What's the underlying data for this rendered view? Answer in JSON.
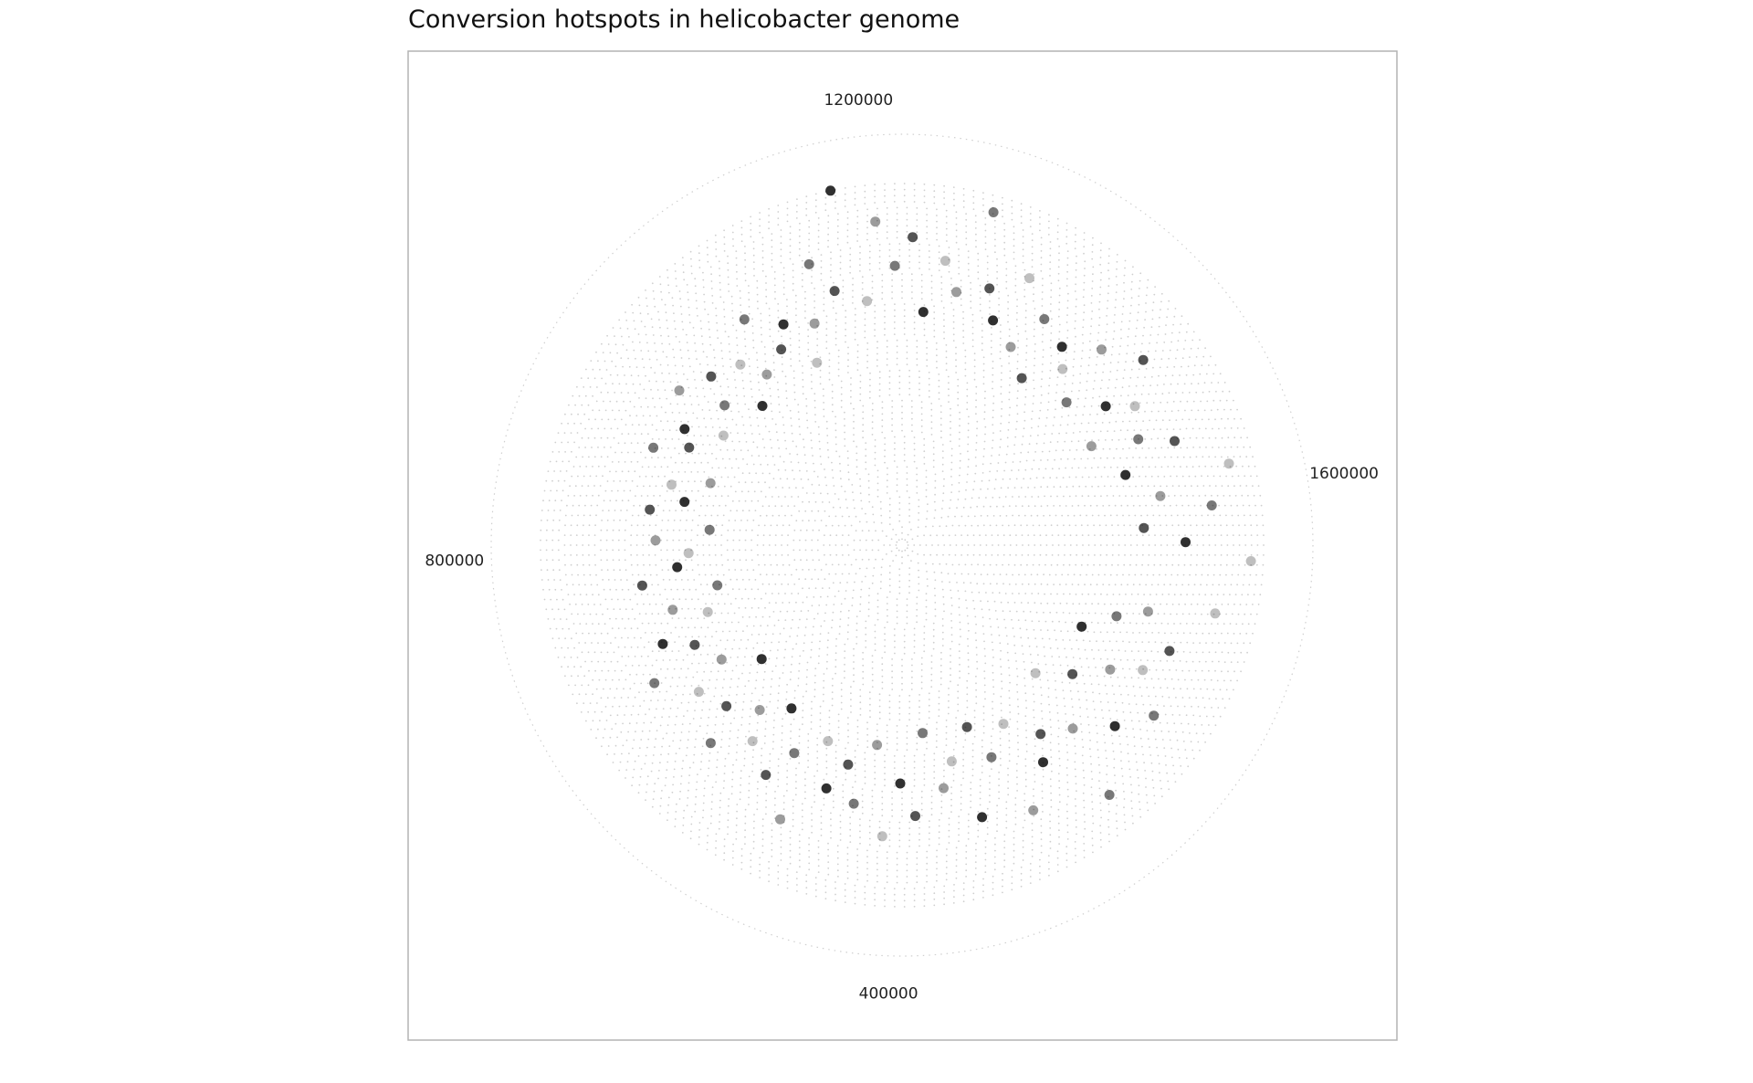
{
  "chart_data": {
    "type": "scatter",
    "coordinate_system": "polar",
    "title": "Conversion hotspots in helicobacter genome",
    "xlabel": "",
    "ylabel": "",
    "angle_axis": {
      "min": 0,
      "max": 1667867,
      "direction": "counterclockwise",
      "tick_labels": [
        "400000",
        "800000",
        "1200000",
        "1600000"
      ],
      "tick_values": [
        400000,
        800000,
        1200000,
        1600000
      ]
    },
    "radial_axis": {
      "min": 0,
      "max": 1
    },
    "grid": true,
    "legend": "none",
    "point_color": "#000000",
    "grid_color": "#cfcfcf",
    "panel_border_color": "#b3b3b3",
    "points_description": "hotspot positions placed along a spiral of increasing genome position; point darkness reflects overlap density",
    "points": [
      [
        32000,
        0.78
      ],
      [
        45000,
        0.62
      ],
      [
        60000,
        0.55
      ],
      [
        75000,
        0.7
      ],
      [
        88000,
        0.48
      ],
      [
        102000,
        0.66
      ],
      [
        118000,
        0.59
      ],
      [
        133000,
        0.74
      ],
      [
        147000,
        0.52
      ],
      [
        162000,
        0.68
      ],
      [
        178000,
        0.45
      ],
      [
        193000,
        0.61
      ],
      [
        208000,
        0.79
      ],
      [
        224000,
        0.57
      ],
      [
        239000,
        0.63
      ],
      [
        255000,
        0.5
      ],
      [
        270000,
        0.72
      ],
      [
        286000,
        0.56
      ],
      [
        301000,
        0.47
      ],
      [
        316000,
        0.69
      ],
      [
        332000,
        0.54
      ],
      [
        347000,
        0.6
      ],
      [
        363000,
        0.46
      ],
      [
        379000,
        0.66
      ],
      [
        394000,
        0.58
      ],
      [
        410000,
        0.71
      ],
      [
        425000,
        0.49
      ],
      [
        441000,
        0.64
      ],
      [
        456000,
        0.55
      ],
      [
        472000,
        0.62
      ],
      [
        488000,
        0.51
      ],
      [
        503000,
        0.73
      ],
      [
        519000,
        0.57
      ],
      [
        534000,
        0.65
      ],
      [
        550000,
        0.48
      ],
      [
        565000,
        0.6
      ],
      [
        581000,
        0.53
      ],
      [
        596000,
        0.67
      ],
      [
        612000,
        0.58
      ],
      [
        628000,
        0.44
      ],
      [
        643000,
        0.61
      ],
      [
        659000,
        0.52
      ],
      [
        674000,
        0.69
      ],
      [
        690000,
        0.56
      ],
      [
        705000,
        0.63
      ],
      [
        721000,
        0.5
      ],
      [
        736000,
        0.58
      ],
      [
        752000,
        0.46
      ],
      [
        768000,
        0.64
      ],
      [
        783000,
        0.55
      ],
      [
        799000,
        0.52
      ],
      [
        814000,
        0.6
      ],
      [
        830000,
        0.47
      ],
      [
        846000,
        0.62
      ],
      [
        861000,
        0.54
      ],
      [
        877000,
        0.58
      ],
      [
        892000,
        0.49
      ],
      [
        908000,
        0.65
      ],
      [
        923000,
        0.57
      ],
      [
        939000,
        0.6
      ],
      [
        955000,
        0.51
      ],
      [
        970000,
        0.66
      ],
      [
        986000,
        0.55
      ],
      [
        1001000,
        0.62
      ],
      [
        1017000,
        0.48
      ],
      [
        1032000,
        0.59
      ],
      [
        1048000,
        0.53
      ],
      [
        1064000,
        0.67
      ],
      [
        1079000,
        0.56
      ],
      [
        1095000,
        0.61
      ],
      [
        1110000,
        0.49
      ],
      [
        1126000,
        0.58
      ],
      [
        1141000,
        0.72
      ],
      [
        1157000,
        0.64
      ],
      [
        1173000,
        0.88
      ],
      [
        1188000,
        0.6
      ],
      [
        1204000,
        0.79
      ],
      [
        1219000,
        0.68
      ],
      [
        1235000,
        0.75
      ],
      [
        1250000,
        0.57
      ],
      [
        1266000,
        0.7
      ],
      [
        1282000,
        0.63
      ],
      [
        1297000,
        0.84
      ],
      [
        1313000,
        0.66
      ],
      [
        1328000,
        0.59
      ],
      [
        1344000,
        0.72
      ],
      [
        1359000,
        0.55
      ],
      [
        1375000,
        0.65
      ],
      [
        1391000,
        0.5
      ],
      [
        1406000,
        0.62
      ],
      [
        1422000,
        0.58
      ],
      [
        1437000,
        0.68
      ],
      [
        1453000,
        0.53
      ],
      [
        1469000,
        0.74
      ],
      [
        1484000,
        0.6
      ],
      [
        1500000,
        0.66
      ],
      [
        1515000,
        0.52
      ],
      [
        1531000,
        0.63
      ],
      [
        1546000,
        0.71
      ],
      [
        1562000,
        0.57
      ],
      [
        1578000,
        0.82
      ],
      [
        1593000,
        0.64
      ],
      [
        1609000,
        0.76
      ],
      [
        1624000,
        0.59
      ],
      [
        1640000,
        0.69
      ],
      [
        1655000,
        0.85
      ]
    ]
  }
}
